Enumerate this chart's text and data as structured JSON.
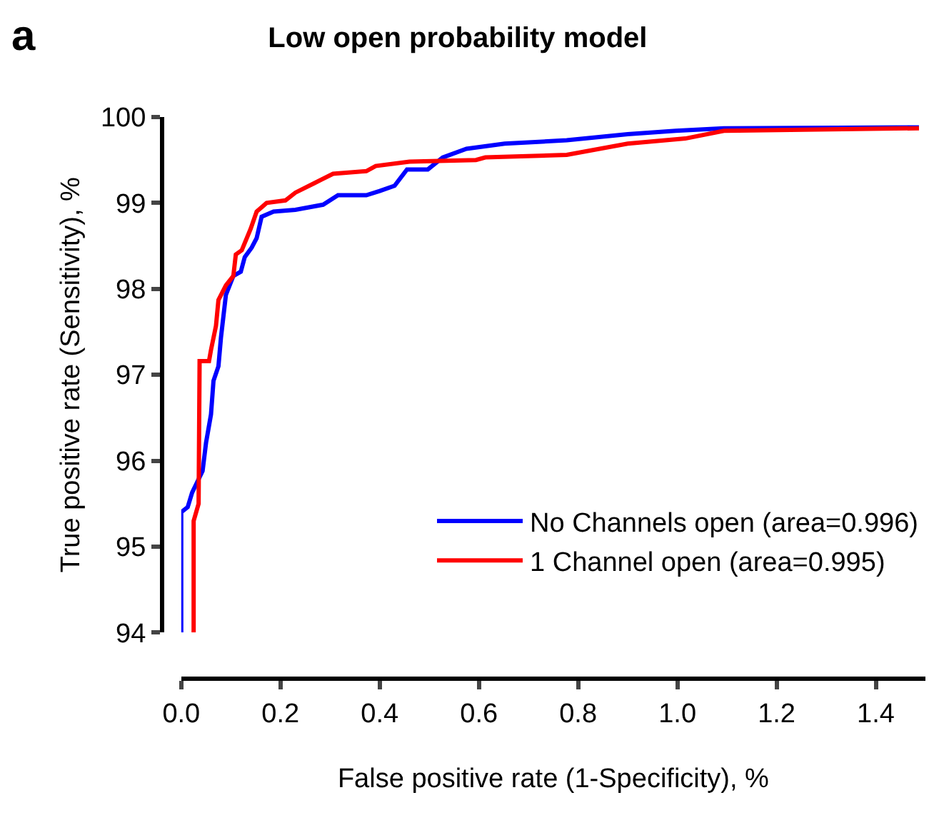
{
  "chart_data": {
    "type": "line",
    "title": "Low open probability model",
    "annotations": [
      "a"
    ],
    "xlabel": "False positive rate (1-Specificity), %",
    "ylabel": "True positive rate (Sensitivity), %",
    "xlim": [
      0,
      1.5
    ],
    "xticks": [
      {
        "value": 0,
        "label": "0.0"
      },
      0.2,
      0.4,
      0.6,
      0.8,
      {
        "value": 1,
        "label": "1.0"
      },
      1.2,
      1.4
    ],
    "ylim": [
      94,
      100
    ],
    "yticks": [
      94,
      95,
      96,
      97,
      98,
      99,
      100
    ],
    "legend": "bottom right",
    "marker": "none",
    "line_style": "solid",
    "series": [
      {
        "name": "No Channels open (area=0.996)",
        "color": "#0000ff",
        "x": [
          0,
          0,
          0.013,
          0.022,
          0.043,
          0.05,
          0.06,
          0.065,
          0.075,
          0.08,
          0.09,
          0.105,
          0.12,
          0.128,
          0.142,
          0.152,
          0.162,
          0.186,
          0.23,
          0.286,
          0.316,
          0.373,
          0.4,
          0.43,
          0.455,
          0.497,
          0.527,
          0.575,
          0.652,
          0.777,
          0.9,
          0.997,
          1.094,
          1.487
        ],
        "values": [
          94,
          95.4,
          95.46,
          95.63,
          95.88,
          96.21,
          96.54,
          96.93,
          97.1,
          97.43,
          97.93,
          98.15,
          98.2,
          98.37,
          98.48,
          98.59,
          98.84,
          98.9,
          98.92,
          98.98,
          99.09,
          99.09,
          99.14,
          99.2,
          99.39,
          99.39,
          99.53,
          99.63,
          99.69,
          99.73,
          99.8,
          99.84,
          99.87,
          99.88
        ]
      },
      {
        "name": "1 Channel open (area=0.995)",
        "color": "#ff0000",
        "x": [
          0.025,
          0.025,
          0.035,
          0.037,
          0.056,
          0.06,
          0.07,
          0.075,
          0.09,
          0.105,
          0.11,
          0.122,
          0.14,
          0.152,
          0.172,
          0.21,
          0.23,
          0.268,
          0.306,
          0.373,
          0.392,
          0.46,
          0.594,
          0.613,
          0.777,
          0.9,
          1.016,
          1.094,
          1.487
        ],
        "values": [
          94,
          95.3,
          95.5,
          97.16,
          97.16,
          97.29,
          97.57,
          97.87,
          98.04,
          98.15,
          98.4,
          98.45,
          98.7,
          98.9,
          99.0,
          99.03,
          99.12,
          99.23,
          99.34,
          99.37,
          99.43,
          99.48,
          99.5,
          99.53,
          99.56,
          99.69,
          99.75,
          99.84,
          99.87
        ]
      }
    ]
  }
}
